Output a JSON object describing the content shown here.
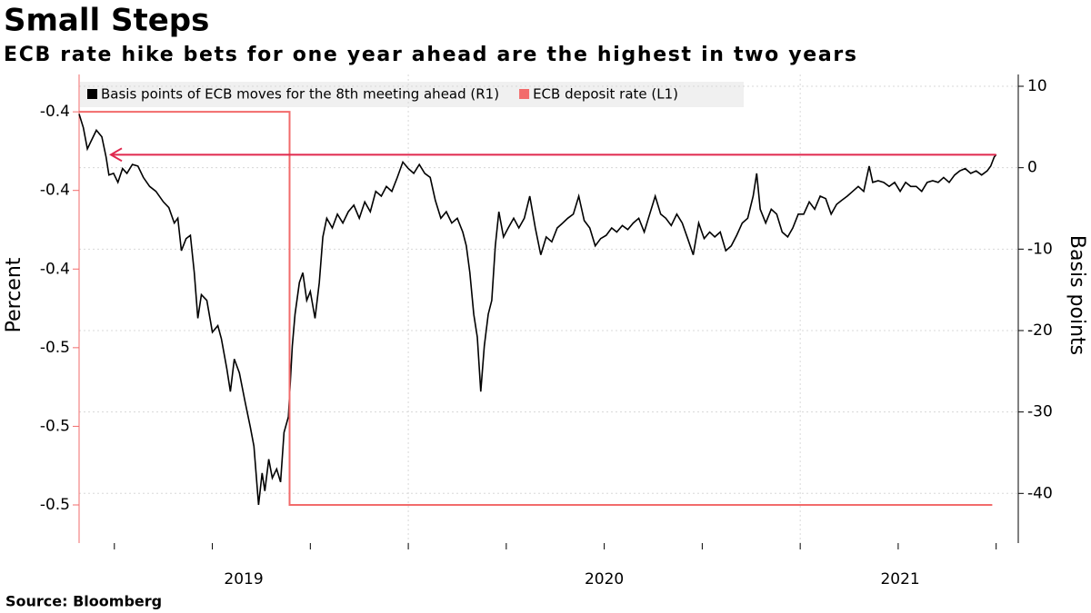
{
  "chart_data": {
    "type": "line",
    "title": "Small Steps",
    "subtitle": "ECB rate hike bets for one year ahead are the highest in two years",
    "source": "Source: Bloomberg",
    "ylabel": "Percent",
    "y2label": "Basis points",
    "xlim": [
      2019.16,
      2021.51
    ],
    "xticks": [
      2019.25,
      2019.5,
      2019.75,
      2020,
      2020.25,
      2020.5,
      2020.75,
      2021,
      2021.25,
      2021.5
    ],
    "x_labels": [
      2019,
      2020,
      2021
    ],
    "ylim": [
      -0.5097,
      -0.3905
    ],
    "yticks": [
      {
        "value": -0.4,
        "label": "-0.4"
      },
      {
        "value": -0.42,
        "label": "-0.4"
      },
      {
        "value": -0.44,
        "label": "-0.4"
      },
      {
        "value": -0.46,
        "label": "-0.5"
      },
      {
        "value": -0.48,
        "label": "-0.5"
      },
      {
        "value": -0.5,
        "label": "-0.5"
      }
    ],
    "y2lim": [
      -46.1,
      11.45
    ],
    "y2ticks": [
      -40,
      -30,
      -20,
      -10,
      0,
      10
    ],
    "grid": true,
    "legend": "top-left",
    "series": [
      {
        "name": "Basis points of ECB moves for the 8th meeting ahead (R1)",
        "color": "#000000",
        "axis": "y2",
        "x": [
          2019.16,
          2019.171,
          2019.181,
          2019.19,
          2019.204,
          2019.218,
          2019.229,
          2019.236,
          2019.248,
          2019.259,
          2019.271,
          2019.282,
          2019.296,
          2019.31,
          2019.324,
          2019.34,
          2019.356,
          2019.375,
          2019.389,
          2019.403,
          2019.412,
          2019.421,
          2019.433,
          2019.444,
          2019.454,
          2019.463,
          2019.472,
          2019.486,
          2019.5,
          2019.514,
          2019.523,
          2019.537,
          2019.546,
          2019.556,
          2019.569,
          2019.583,
          2019.597,
          2019.606,
          2019.618,
          2019.627,
          2019.634,
          2019.644,
          2019.653,
          2019.664,
          2019.674,
          2019.683,
          2019.694,
          2019.704,
          2019.711,
          2019.722,
          2019.731,
          2019.741,
          2019.75,
          2019.762,
          2019.773,
          2019.782,
          2019.792,
          2019.806,
          2019.819,
          2019.833,
          2019.847,
          2019.861,
          2019.875,
          2019.889,
          2019.903,
          2019.917,
          2019.931,
          2019.944,
          2019.958,
          2019.972,
          2019.986,
          2020.0,
          2020.014,
          2020.028,
          2020.042,
          2020.056,
          2020.069,
          2020.083,
          2020.097,
          2020.111,
          2020.125,
          2020.139,
          2020.148,
          2020.157,
          2020.167,
          2020.176,
          2020.185,
          2020.194,
          2020.204,
          2020.213,
          2020.222,
          2020.231,
          2020.243,
          2020.255,
          2020.269,
          2020.282,
          2020.296,
          2020.31,
          2020.324,
          2020.338,
          2020.352,
          2020.366,
          2020.38,
          2020.394,
          2020.407,
          2020.421,
          2020.435,
          2020.449,
          2020.463,
          2020.477,
          2020.491,
          2020.505,
          2020.519,
          2020.532,
          2020.546,
          2020.56,
          2020.574,
          2020.588,
          2020.602,
          2020.616,
          2020.63,
          2020.644,
          2020.657,
          2020.671,
          2020.685,
          2020.699,
          2020.713,
          2020.727,
          2020.741,
          2020.755,
          2020.769,
          2020.782,
          2020.796,
          2020.81,
          2020.824,
          2020.838,
          2020.852,
          2020.866,
          2020.88,
          2020.889,
          2020.898,
          2020.912,
          2020.926,
          2020.94,
          2020.954,
          2020.968,
          2020.981,
          2020.995,
          2021.009,
          2021.023,
          2021.037,
          2021.051,
          2021.065,
          2021.079,
          2021.093,
          2021.106,
          2021.12,
          2021.134,
          2021.148,
          2021.162,
          2021.176,
          2021.185,
          2021.199,
          2021.213,
          2021.227,
          2021.241,
          2021.255,
          2021.269,
          2021.282,
          2021.296,
          2021.31,
          2021.324,
          2021.338,
          2021.352,
          2021.366,
          2021.38,
          2021.394,
          2021.407,
          2021.421,
          2021.435,
          2021.449,
          2021.463,
          2021.477,
          2021.486,
          2021.495,
          2021.5
        ],
        "values": [
          6.6,
          4.9,
          2.3,
          3.2,
          4.6,
          3.8,
          1.3,
          -0.9,
          -0.7,
          -1.8,
          -0.1,
          -0.7,
          0.4,
          0.2,
          -1.2,
          -2.3,
          -2.9,
          -4.2,
          -4.9,
          -6.8,
          -6.2,
          -10.2,
          -8.7,
          -8.3,
          -12.9,
          -18.5,
          -15.6,
          -16.3,
          -20.2,
          -19.4,
          -21.0,
          -24.7,
          -27.5,
          -23.5,
          -25.2,
          -28.6,
          -31.9,
          -34.2,
          -41.4,
          -37.5,
          -39.7,
          -35.8,
          -38.1,
          -37.0,
          -38.6,
          -32.5,
          -30.6,
          -21.9,
          -18.0,
          -14.1,
          -12.9,
          -16.3,
          -15.2,
          -18.5,
          -14.1,
          -8.5,
          -6.2,
          -7.4,
          -5.7,
          -6.8,
          -5.4,
          -4.6,
          -6.2,
          -4.2,
          -5.4,
          -2.9,
          -3.5,
          -2.3,
          -2.9,
          -1.2,
          0.7,
          -0.1,
          -0.7,
          0.4,
          -0.7,
          -1.2,
          -4.0,
          -6.2,
          -5.4,
          -6.8,
          -6.2,
          -7.9,
          -9.6,
          -12.9,
          -18.0,
          -20.8,
          -27.5,
          -21.9,
          -18.0,
          -16.3,
          -9.6,
          -5.4,
          -8.5,
          -7.4,
          -6.2,
          -7.4,
          -6.2,
          -3.5,
          -7.4,
          -10.7,
          -8.5,
          -9.1,
          -7.4,
          -6.8,
          -6.2,
          -5.7,
          -3.5,
          -6.5,
          -7.4,
          -9.6,
          -8.7,
          -8.3,
          -7.4,
          -7.9,
          -7.1,
          -7.6,
          -6.8,
          -6.2,
          -7.9,
          -5.7,
          -3.5,
          -5.7,
          -6.2,
          -7.1,
          -5.7,
          -6.8,
          -8.7,
          -10.7,
          -6.8,
          -8.7,
          -7.9,
          -8.5,
          -7.9,
          -10.2,
          -9.6,
          -8.3,
          -6.8,
          -6.2,
          -3.5,
          -0.7,
          -5.1,
          -6.8,
          -5.1,
          -5.7,
          -7.9,
          -8.5,
          -7.4,
          -5.7,
          -5.7,
          -4.2,
          -5.1,
          -3.5,
          -3.8,
          -5.7,
          -4.5,
          -4.0,
          -3.5,
          -2.9,
          -2.3,
          -2.9,
          0.2,
          -1.8,
          -1.6,
          -1.8,
          -2.3,
          -1.8,
          -2.9,
          -1.8,
          -2.3,
          -2.3,
          -2.9,
          -1.8,
          -1.6,
          -1.8,
          -1.2,
          -1.8,
          -0.9,
          -0.4,
          -0.1,
          -0.7,
          -0.4,
          -0.9,
          -0.4,
          0.2,
          1.3,
          1.6
        ]
      },
      {
        "name": "ECB deposit rate (L1)",
        "color": "#f26b6b",
        "axis": "y",
        "x": [
          2019.16,
          2019.697,
          2019.697,
          2021.49
        ],
        "values": [
          -0.4,
          -0.4,
          -0.5,
          -0.5
        ]
      }
    ]
  }
}
